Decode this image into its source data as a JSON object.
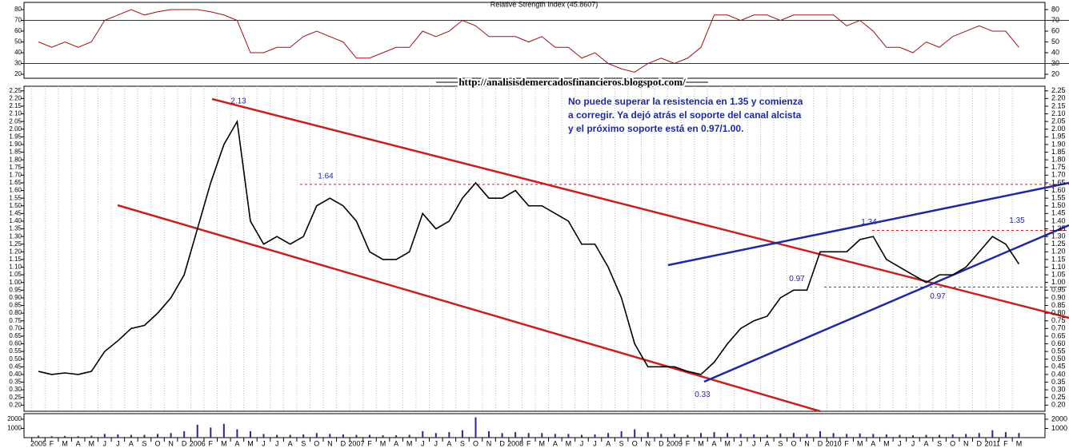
{
  "chart_data": [
    {
      "type": "line",
      "title": "Relative Strength Index (45.8607)",
      "color": "#a01010",
      "ylim": [
        16.3,
        86.7
      ],
      "yticks": [
        20,
        30,
        40,
        50,
        60,
        70,
        80
      ],
      "hlines": [
        70,
        30
      ],
      "values": [
        50,
        45,
        50,
        45,
        50,
        70,
        75,
        80,
        75,
        78,
        80,
        80,
        80,
        78,
        75,
        70,
        40,
        40,
        45,
        45,
        55,
        60,
        55,
        50,
        35,
        35,
        40,
        45,
        45,
        60,
        55,
        60,
        70,
        65,
        55,
        55,
        55,
        50,
        55,
        45,
        45,
        35,
        40,
        30,
        25,
        22,
        30,
        35,
        30,
        35,
        45,
        75,
        75,
        70,
        75,
        75,
        70,
        75,
        75,
        75,
        75,
        65,
        70,
        60,
        45,
        45,
        40,
        50,
        45,
        55,
        60,
        65,
        60,
        60,
        45
      ]
    },
    {
      "type": "line",
      "subtitle": "http://analisisdemercadosfinancieros.blogspot.com/",
      "annotation": [
        "No puede superar la resistencia en 1.35 y comienza",
        "a corregir. Ya dejó atrás el soporte del canal alcista",
        "y el próximo soporte está en 0.97/1.00."
      ],
      "color": "#000000",
      "categories": [
        "2005",
        "F",
        "M",
        "A",
        "M",
        "J",
        "J",
        "A",
        "S",
        "O",
        "N",
        "D",
        "2006",
        "F",
        "M",
        "A",
        "M",
        "J",
        "J",
        "A",
        "S",
        "O",
        "N",
        "D",
        "2007",
        "F",
        "M",
        "A",
        "M",
        "J",
        "J",
        "A",
        "S",
        "O",
        "N",
        "D",
        "2008",
        "F",
        "M",
        "A",
        "M",
        "J",
        "J",
        "A",
        "S",
        "O",
        "N",
        "D",
        "2009",
        "F",
        "M",
        "A",
        "M",
        "J",
        "J",
        "A",
        "S",
        "O",
        "N",
        "D",
        "2010",
        "F",
        "M",
        "A",
        "M",
        "J",
        "J",
        "A",
        "S",
        "O",
        "N",
        "D",
        "2011",
        "F",
        "M"
      ],
      "values": [
        0.42,
        0.4,
        0.41,
        0.4,
        0.42,
        0.55,
        0.62,
        0.7,
        0.72,
        0.8,
        0.9,
        1.05,
        1.35,
        1.65,
        1.9,
        2.05,
        1.4,
        1.25,
        1.3,
        1.25,
        1.3,
        1.5,
        1.55,
        1.5,
        1.4,
        1.2,
        1.15,
        1.15,
        1.2,
        1.45,
        1.35,
        1.4,
        1.55,
        1.65,
        1.55,
        1.55,
        1.6,
        1.5,
        1.5,
        1.45,
        1.4,
        1.25,
        1.25,
        1.1,
        0.9,
        0.6,
        0.45,
        0.45,
        0.45,
        0.42,
        0.4,
        0.48,
        0.6,
        0.7,
        0.75,
        0.78,
        0.9,
        0.95,
        0.95,
        1.2,
        1.2,
        1.2,
        1.28,
        1.3,
        1.15,
        1.1,
        1.05,
        1.0,
        1.05,
        1.05,
        1.1,
        1.2,
        1.3,
        1.25,
        1.12
      ],
      "ylim": [
        0.16,
        2.28
      ],
      "yticks": [
        {
          "value": 0.2,
          "label": "0.20"
        },
        0.25,
        {
          "value": 0.3,
          "label": "0.30"
        },
        0.35,
        {
          "value": 0.4,
          "label": "0.40"
        },
        0.45,
        {
          "value": 0.5,
          "label": "0.50"
        },
        0.55,
        {
          "value": 0.6,
          "label": "0.60"
        },
        0.65,
        {
          "value": 0.7,
          "label": "0.70"
        },
        0.75,
        {
          "value": 0.8,
          "label": "0.80"
        },
        0.85,
        {
          "value": 0.9,
          "label": "0.90"
        },
        0.95,
        {
          "value": 1,
          "label": "1.00"
        },
        1.05,
        {
          "value": 1.1,
          "label": "1.10"
        },
        1.15,
        {
          "value": 1.2,
          "label": "1.20"
        },
        1.25,
        {
          "value": 1.3,
          "label": "1.30"
        },
        1.35,
        {
          "value": 1.4,
          "label": "1.40"
        },
        1.45,
        {
          "value": 1.5,
          "label": "1.50"
        },
        1.55,
        {
          "value": 1.6,
          "label": "1.60"
        },
        1.65,
        {
          "value": 1.7,
          "label": "1.70"
        },
        1.75,
        {
          "value": 1.8,
          "label": "1.80"
        },
        1.85,
        {
          "value": 1.9,
          "label": "1.90"
        },
        1.95,
        {
          "value": 2,
          "label": "2.00"
        },
        2.05,
        {
          "value": 2.1,
          "label": "2.10"
        },
        2.15,
        {
          "value": 2.2,
          "label": "2.20"
        },
        2.25
      ],
      "levels": [
        2.13,
        1.64,
        1.34,
        1.35,
        0.97,
        0.97,
        0.33
      ]
    },
    {
      "type": "bar",
      "color": "#2a2a80",
      "ylim": [
        0,
        2600
      ],
      "yticks": [
        1000,
        2000
      ],
      "values": [
        200,
        150,
        180,
        150,
        200,
        400,
        350,
        300,
        300,
        400,
        500,
        700,
        1400,
        1100,
        1500,
        900,
        700,
        400,
        300,
        300,
        350,
        500,
        400,
        350,
        300,
        300,
        250,
        250,
        300,
        700,
        500,
        600,
        800,
        2200,
        700,
        500,
        600,
        500,
        500,
        400,
        400,
        300,
        350,
        500,
        700,
        900,
        600,
        400,
        400,
        300,
        500,
        600,
        500,
        400,
        350,
        300,
        450,
        500,
        400,
        700,
        500,
        400,
        450,
        400,
        350,
        300,
        250,
        300,
        300,
        350,
        400,
        500,
        800,
        600,
        500
      ]
    }
  ]
}
